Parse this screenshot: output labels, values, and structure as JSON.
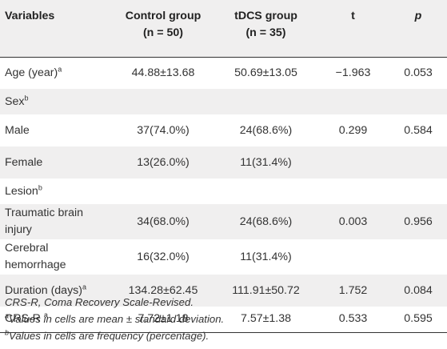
{
  "header": {
    "variables": "Variables",
    "control_line1": "Control group",
    "control_line2": "(n = 50)",
    "tdcs_line1": "tDCS group",
    "tdcs_line2": "(n = 35)",
    "t": "t",
    "p": "p"
  },
  "rows": [
    {
      "label": "Age (year)",
      "sup": "a",
      "label2": "",
      "control": "44.88±13.68",
      "tdcs": "50.69±13.05",
      "t": "−1.963",
      "p": "0.053"
    },
    {
      "label": "Sex",
      "sup": "b",
      "label2": "",
      "control": "",
      "tdcs": "",
      "t": "",
      "p": ""
    },
    {
      "label": "Male",
      "sup": "",
      "label2": "",
      "control": "37(74.0%)",
      "tdcs": "24(68.6%)",
      "t": "0.299",
      "p": "0.584"
    },
    {
      "label": "Female",
      "sup": "",
      "label2": "",
      "control": "13(26.0%)",
      "tdcs": "11(31.4%)",
      "t": "",
      "p": ""
    },
    {
      "label": "Lesion",
      "sup": "b",
      "label2": "",
      "control": "",
      "tdcs": "",
      "t": "",
      "p": ""
    },
    {
      "label": "Traumatic brain",
      "sup": "",
      "label2": "injury",
      "control": "34(68.0%)",
      "tdcs": "24(68.6%)",
      "t": "0.003",
      "p": "0.956"
    },
    {
      "label": "Cerebral",
      "sup": "",
      "label2": "hemorrhage",
      "control": "16(32.0%)",
      "tdcs": "11(31.4%)",
      "t": "",
      "p": ""
    },
    {
      "label": "Duration (days)",
      "sup": "a",
      "label2": "",
      "control": "134.28±62.45",
      "tdcs": "111.91±50.72",
      "t": "1.752",
      "p": "0.084"
    },
    {
      "label": "CRS-R ",
      "sup": "a",
      "label2": "",
      "control": "7.72±1.18",
      "tdcs": "7.57±1.38",
      "t": "0.533",
      "p": "0.595"
    }
  ],
  "footnotes": [
    {
      "sup": "",
      "text": "CRS-R, Coma Recovery Scale-Revised."
    },
    {
      "sup": "a",
      "text": "Values in cells are mean ± standard deviation."
    },
    {
      "sup": "b",
      "text": "Values in cells are frequency (percentage)."
    }
  ]
}
